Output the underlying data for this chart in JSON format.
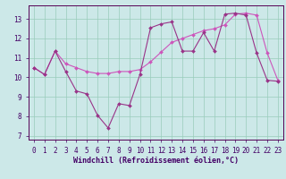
{
  "xlabel": "Windchill (Refroidissement éolien,°C)",
  "background_color": "#cce8e8",
  "line_color1": "#cc55bb",
  "line_color2": "#993388",
  "xlim": [
    -0.5,
    23.5
  ],
  "ylim": [
    6.8,
    13.7
  ],
  "yticks": [
    7,
    8,
    9,
    10,
    11,
    12,
    13
  ],
  "xticks": [
    0,
    1,
    2,
    3,
    4,
    5,
    6,
    7,
    8,
    9,
    10,
    11,
    12,
    13,
    14,
    15,
    16,
    17,
    18,
    19,
    20,
    21,
    22,
    23
  ],
  "series1_x": [
    0,
    1,
    2,
    3,
    4,
    5,
    6,
    7,
    8,
    9,
    10,
    11,
    12,
    13,
    14,
    15,
    16,
    17,
    18,
    19,
    20,
    21,
    22,
    23
  ],
  "series1_y": [
    10.5,
    10.15,
    11.35,
    10.7,
    10.5,
    10.3,
    10.2,
    10.2,
    10.3,
    10.3,
    10.4,
    10.8,
    11.3,
    11.8,
    12.0,
    12.2,
    12.4,
    12.5,
    12.7,
    13.25,
    13.3,
    13.2,
    11.25,
    9.85
  ],
  "series2_x": [
    0,
    1,
    2,
    3,
    4,
    5,
    6,
    7,
    8,
    9,
    10,
    11,
    12,
    13,
    14,
    15,
    16,
    17,
    18,
    19,
    20,
    21,
    22,
    23
  ],
  "series2_y": [
    10.5,
    10.15,
    11.35,
    10.3,
    9.3,
    9.15,
    8.05,
    7.4,
    8.65,
    8.55,
    10.15,
    12.55,
    12.75,
    12.85,
    11.35,
    11.35,
    12.3,
    11.35,
    13.25,
    13.3,
    13.2,
    11.25,
    9.85,
    9.8
  ],
  "grid_color": "#99ccbb",
  "tick_fontsize": 5.5,
  "xlabel_fontsize": 6.0,
  "marker_size": 2.0,
  "linewidth": 0.8
}
